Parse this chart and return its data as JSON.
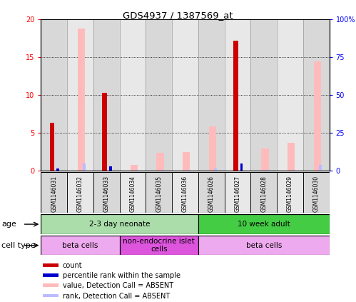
{
  "title": "GDS4937 / 1387569_at",
  "samples": [
    "GSM1146031",
    "GSM1146032",
    "GSM1146033",
    "GSM1146034",
    "GSM1146035",
    "GSM1146036",
    "GSM1146026",
    "GSM1146027",
    "GSM1146028",
    "GSM1146029",
    "GSM1146030"
  ],
  "count": [
    6.3,
    0,
    10.3,
    0,
    0,
    0,
    0,
    17.2,
    0,
    0,
    0
  ],
  "percentile_rank": [
    1.6,
    0,
    2.6,
    0,
    0,
    0,
    0,
    4.7,
    0,
    0,
    0
  ],
  "absent_value": [
    0,
    18.8,
    0,
    0.8,
    2.4,
    2.5,
    5.9,
    0,
    2.9,
    3.7,
    14.5
  ],
  "absent_rank": [
    0,
    4.7,
    0,
    0.3,
    0.6,
    0.5,
    1.6,
    0,
    0.4,
    0.5,
    3.9
  ],
  "ylim_left": [
    0,
    20
  ],
  "ylim_right": [
    0,
    100
  ],
  "yticks_left": [
    0,
    5,
    10,
    15,
    20
  ],
  "yticks_right": [
    0,
    25,
    50,
    75,
    100
  ],
  "yticklabels_right": [
    "0",
    "25",
    "50",
    "75",
    "100%"
  ],
  "age_groups": [
    {
      "label": "2-3 day neonate",
      "start": 0,
      "end": 6,
      "color": "#aaddaa"
    },
    {
      "label": "10 week adult",
      "start": 6,
      "end": 11,
      "color": "#44cc44"
    }
  ],
  "cell_type_groups": [
    {
      "label": "beta cells",
      "start": 0,
      "end": 3,
      "color": "#eeaaee"
    },
    {
      "label": "non-endocrine islet\ncells",
      "start": 3,
      "end": 6,
      "color": "#dd55dd"
    },
    {
      "label": "beta cells",
      "start": 6,
      "end": 11,
      "color": "#eeaaee"
    }
  ],
  "count_color": "#cc0000",
  "rank_color": "#0000cc",
  "absent_value_color": "#ffbbbb",
  "absent_rank_color": "#bbbbff",
  "col_bg_even": "#d8d8d8",
  "col_bg_odd": "#e8e8e8",
  "legend_items": [
    {
      "label": "count",
      "color": "#cc0000"
    },
    {
      "label": "percentile rank within the sample",
      "color": "#0000cc"
    },
    {
      "label": "value, Detection Call = ABSENT",
      "color": "#ffbbbb"
    },
    {
      "label": "rank, Detection Call = ABSENT",
      "color": "#bbbbff"
    }
  ]
}
